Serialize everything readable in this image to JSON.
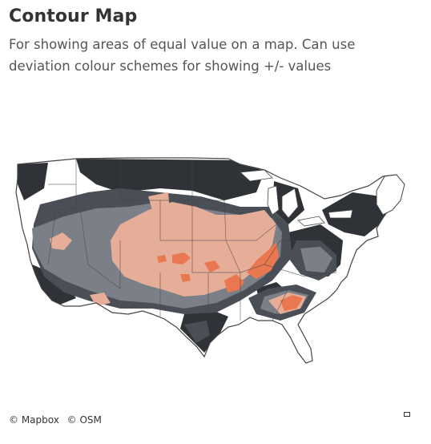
{
  "header": {
    "title": "Contour Map",
    "subtitle_line1": "For showing areas of equal value on a map. Can use",
    "subtitle_line2": "deviation colour schemes for showing +/- values"
  },
  "attribution": {
    "mapbox": "© Mapbox",
    "osm": "© OSM"
  },
  "colors": {
    "land": "#ffffff",
    "border": "#444444",
    "level_1": "#2f3237",
    "level_2": "#4a4e56",
    "level_3": "#7b7f88",
    "level_4": "#e6ad98",
    "level_5": "#e9774f"
  }
}
